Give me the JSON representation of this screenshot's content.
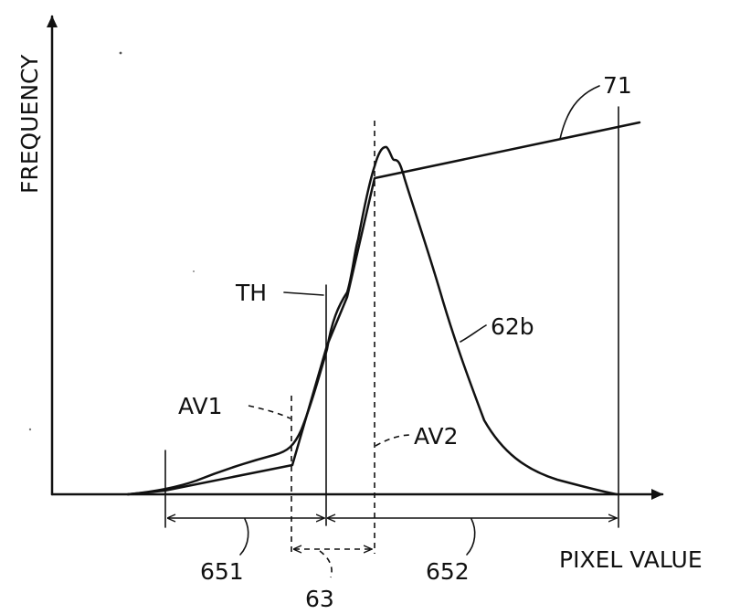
{
  "axes": {
    "y_label": "FREQUENCY",
    "x_label": "PIXEL VALUE"
  },
  "labels": {
    "line_71": "71",
    "curve_62b": "62b",
    "threshold": "TH",
    "average_1": "AV1",
    "average_2": "AV2",
    "range_651": "651",
    "range_652": "652",
    "range_63": "63"
  }
}
